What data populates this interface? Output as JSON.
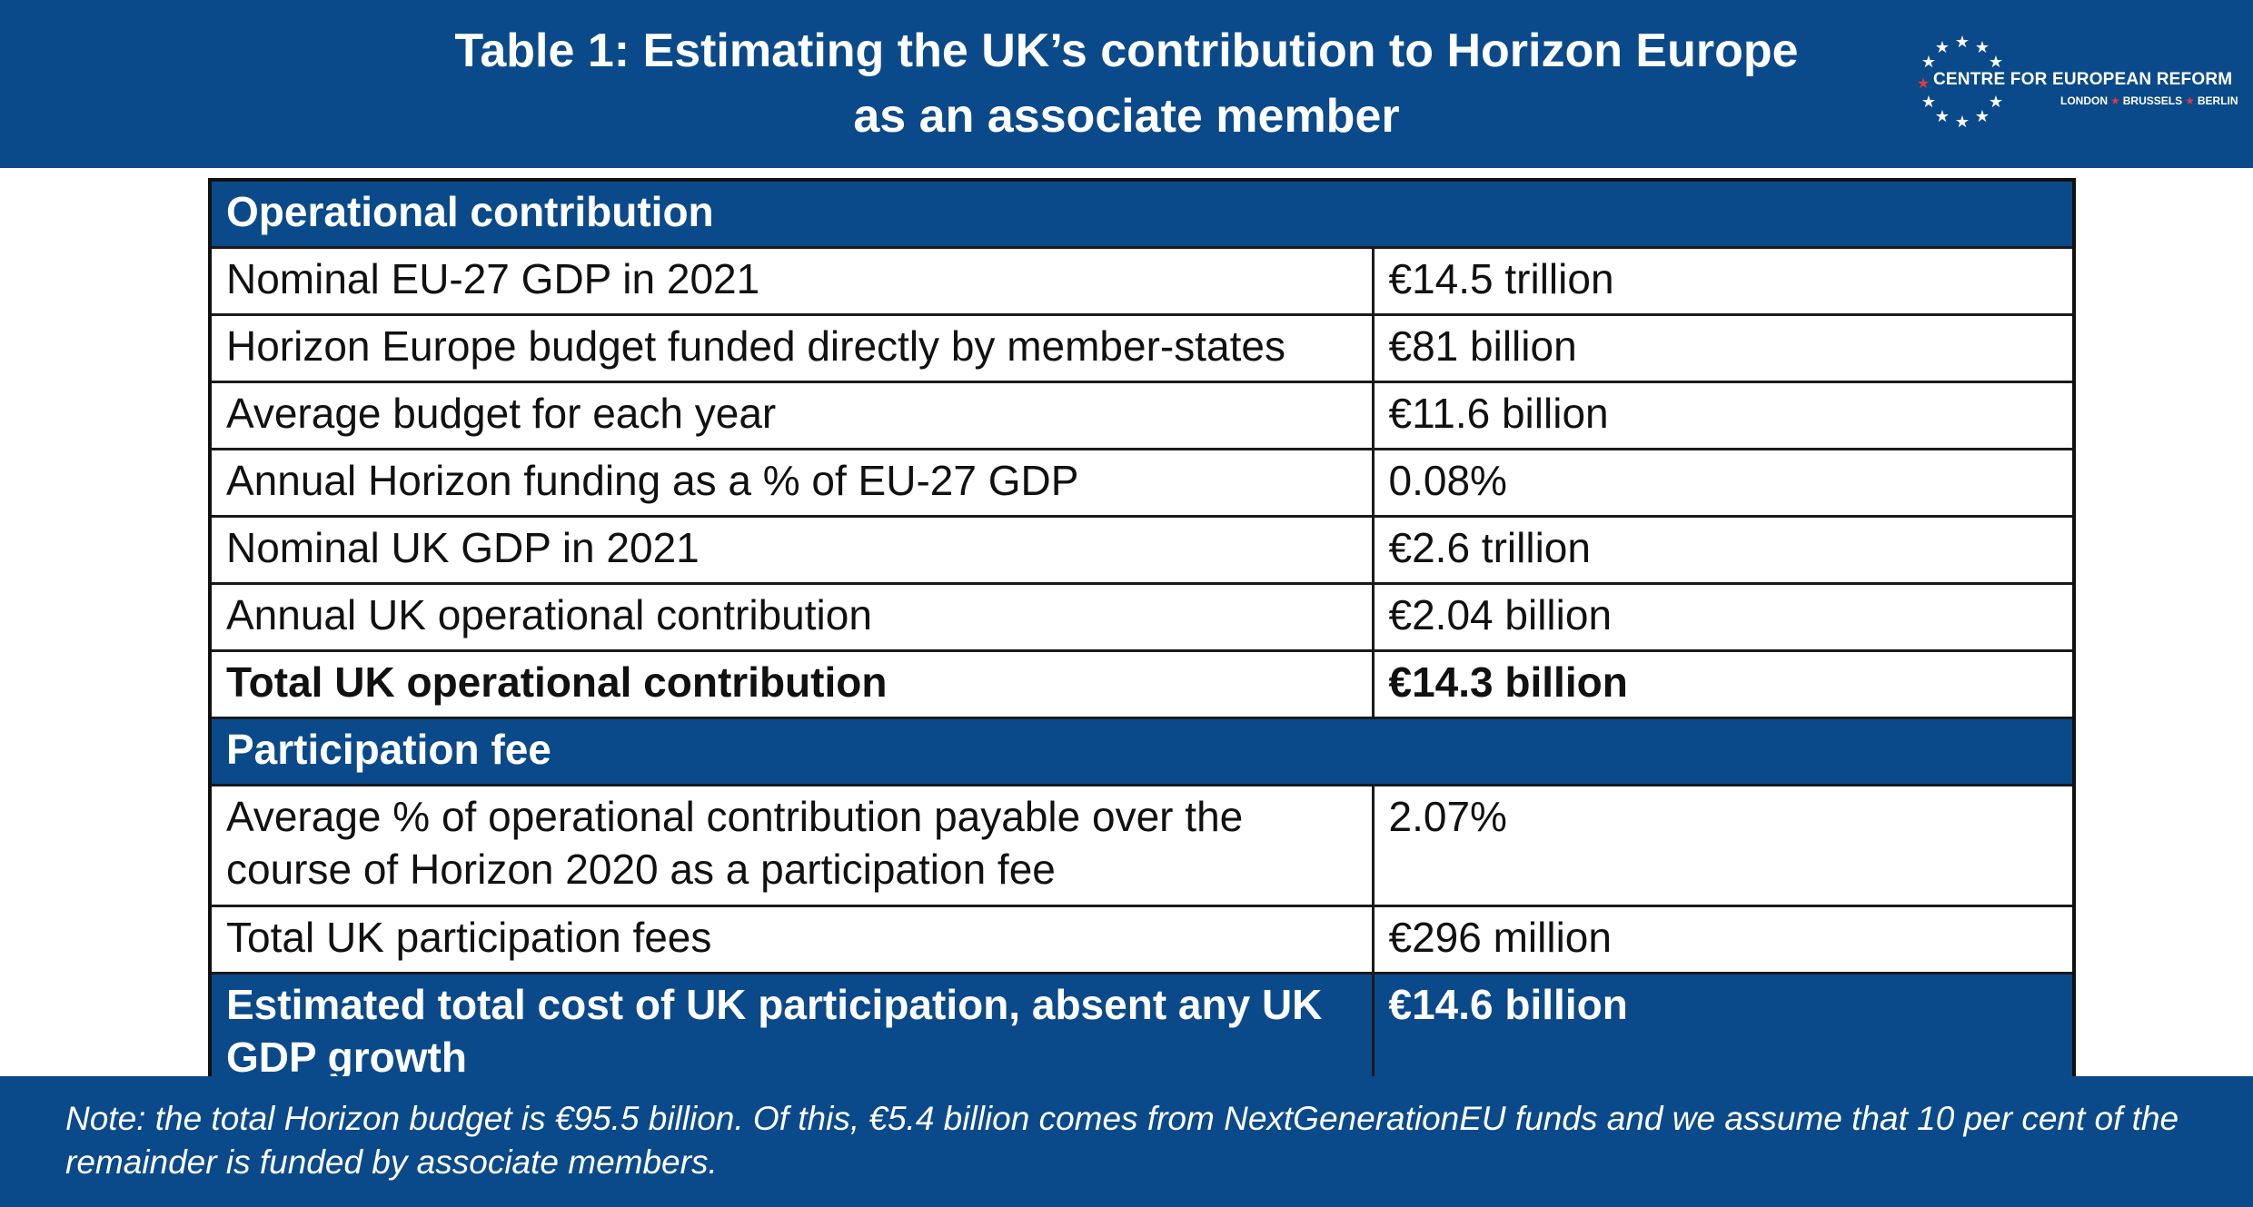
{
  "header": {
    "title_line1": "Table 1: Estimating the UK’s contribution to Horizon Europe",
    "title_line2": "as an associate member",
    "logo": {
      "name": "CENTRE FOR EUROPEAN REFORM",
      "cities": [
        "LONDON",
        "BRUSSELS",
        "BERLIN"
      ],
      "colors": {
        "stars": "#ffffff",
        "accent_star": "#e23b3b"
      }
    },
    "background_color": "#0a4a8a"
  },
  "table": {
    "sections": [
      {
        "heading": "Operational contribution",
        "rows": [
          {
            "label": "Nominal EU-27 GDP in 2021",
            "value": "€14.5 trillion",
            "bold": false
          },
          {
            "label": "Horizon Europe budget funded directly by member-states",
            "value": "€81 billion",
            "bold": false
          },
          {
            "label": "Average budget for each year",
            "value": "€11.6 billion",
            "bold": false
          },
          {
            "label": "Annual Horizon funding as a % of EU-27 GDP",
            "value": "0.08%",
            "bold": false
          },
          {
            "label": "Nominal UK GDP in 2021",
            "value": "€2.6 trillion",
            "bold": false
          },
          {
            "label": "Annual UK operational contribution",
            "value": "€2.04 billion",
            "bold": false
          },
          {
            "label": "Total UK operational contribution",
            "value": "€14.3 billion",
            "bold": true
          }
        ]
      },
      {
        "heading": "Participation fee",
        "rows": [
          {
            "label_line1": "Average % of operational contribution payable over the",
            "label_line2": "course of Horizon 2020 as a participation fee",
            "value": "2.07%",
            "bold": false
          },
          {
            "label": "Total UK participation fees",
            "value": "€296 million",
            "bold": false
          }
        ]
      }
    ],
    "total": {
      "label_line1": "Estimated total cost of UK participation, absent any UK",
      "label_line2": "GDP growth",
      "value": "€14.6 billion"
    }
  },
  "footer": {
    "note_line1": "Note: the total Horizon budget is €95.5 billion. Of this, €5.4 billion comes from NextGenerationEU funds and we assume that 10 per cent of the",
    "note_line2": "remainder is funded by associate members."
  }
}
